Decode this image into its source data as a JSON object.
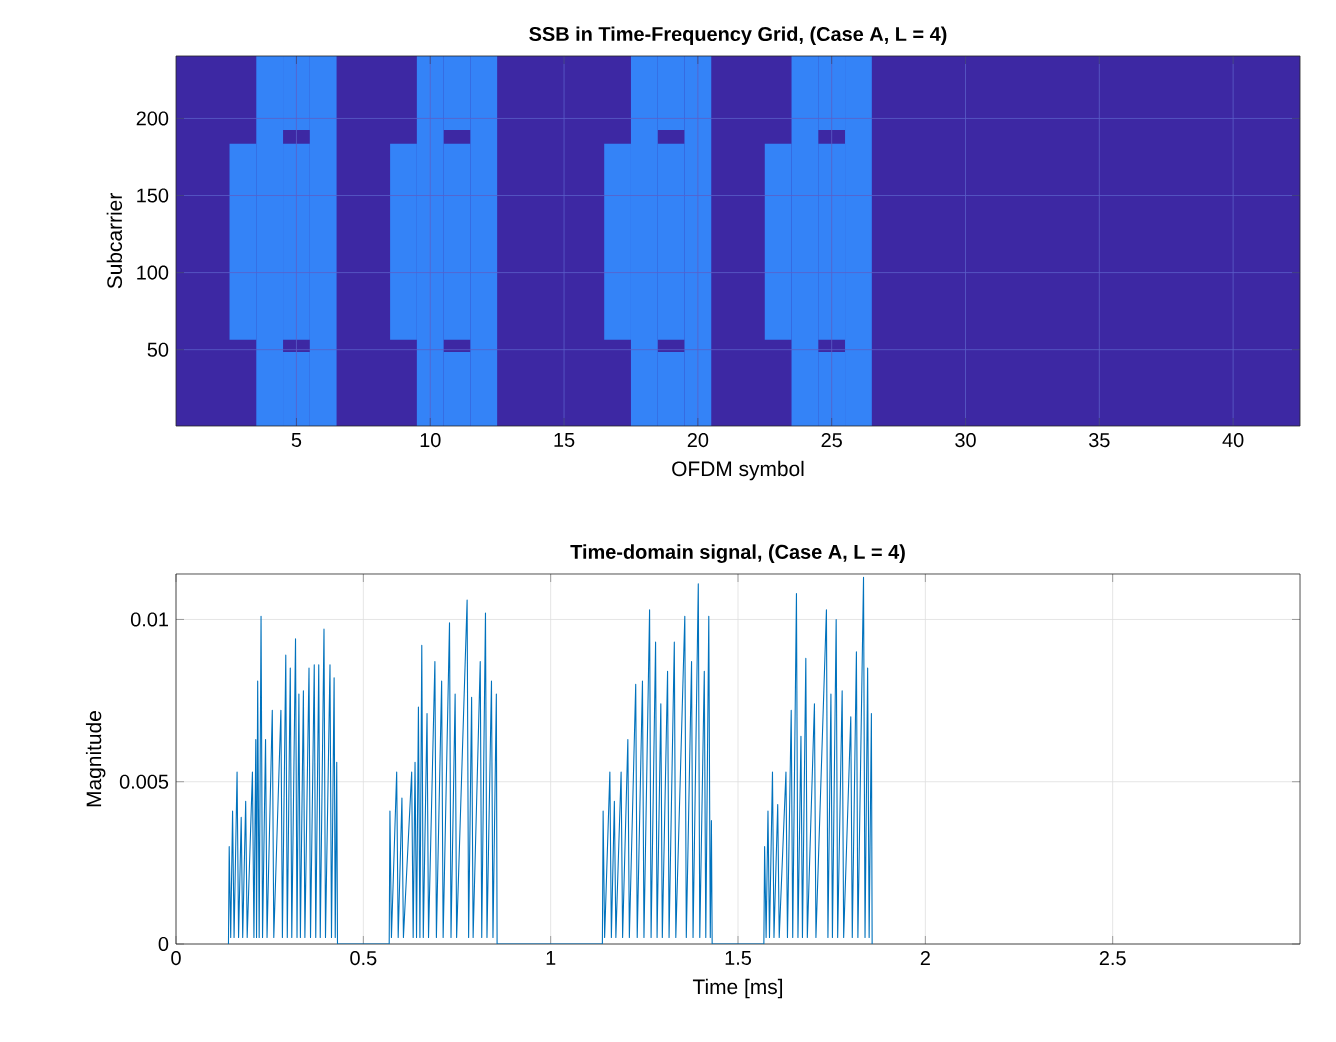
{
  "chart_data": [
    {
      "type": "bar",
      "title": "SSB in Time-Frequency Grid, (Case A, L = 4)",
      "xlabel": "OFDM symbol",
      "ylabel": "Subcarrier",
      "xlim": [
        0.5,
        42.5
      ],
      "xticks": [
        5,
        10,
        15,
        20,
        25,
        30,
        35,
        40
      ],
      "ylim": [
        0.5,
        240.5
      ],
      "yticks": [
        50,
        100,
        150,
        200
      ],
      "grid": true,
      "series": [
        {
          "color": "#3483f7",
          "x": [
            3,
            4,
            6,
            9,
            10,
            12,
            17,
            18,
            20,
            23,
            24,
            26
          ],
          "base": [
            56.5,
            0.5,
            0.5,
            56.5,
            0.5,
            0.5,
            56.5,
            0.5,
            0.5,
            56.5,
            0.5,
            0.5
          ],
          "values": [
            127,
            240,
            240,
            127,
            240,
            240,
            127,
            240,
            240,
            127,
            240,
            240
          ]
        },
        {
          "color": "#3483f7",
          "x": [
            5,
            11,
            19,
            25
          ],
          "base": [
            0.5,
            0.5,
            0.5,
            0.5
          ],
          "values": [
            48,
            48,
            48,
            48
          ]
        },
        {
          "color": "#3483f7",
          "x": [
            5,
            11,
            19,
            25
          ],
          "base": [
            56.5,
            56.5,
            56.5,
            56.5
          ],
          "values": [
            127,
            127,
            127,
            127
          ]
        },
        {
          "color": "#3483f7",
          "x": [
            5,
            11,
            19,
            25
          ],
          "base": [
            192.5,
            192.5,
            192.5,
            192.5
          ],
          "values": [
            48,
            48,
            48,
            48
          ]
        }
      ]
    },
    {
      "type": "line",
      "title": "Time-domain signal, (Case A, L = 4)",
      "xlabel": "Time [ms]",
      "ylabel": "Magnitude",
      "xlim": [
        0,
        3
      ],
      "xticks": [
        0,
        0.5,
        1,
        1.5,
        2,
        2.5
      ],
      "ylim": [
        0,
        0.0114
      ],
      "yticks": [
        0,
        0.005,
        0.01
      ],
      "grid": true,
      "series": [
        {
          "color": "#0072bd",
          "x": [
            0.14,
            0.142,
            0.146,
            0.151,
            0.155,
            0.163,
            0.167,
            0.174,
            0.178,
            0.186,
            0.19,
            0.204,
            0.208,
            0.213,
            0.215,
            0.218,
            0.222,
            0.227,
            0.231,
            0.239,
            0.243,
            0.257,
            0.261,
            0.28,
            0.284,
            0.293,
            0.297,
            0.305,
            0.309,
            0.319,
            0.323,
            0.328,
            0.332,
            0.34,
            0.344,
            0.355,
            0.359,
            0.369,
            0.373,
            0.381,
            0.385,
            0.395,
            0.399,
            0.411,
            0.415,
            0.422,
            0.425,
            0.429,
            0.431,
            0.569,
            0.571,
            0.575,
            0.589,
            0.593,
            0.603,
            0.607,
            0.629,
            0.633,
            0.638,
            0.642,
            0.647,
            0.651,
            0.656,
            0.66,
            0.67,
            0.674,
            0.691,
            0.695,
            0.709,
            0.713,
            0.73,
            0.734,
            0.745,
            0.749,
            0.777,
            0.781,
            0.789,
            0.793,
            0.812,
            0.816,
            0.826,
            0.83,
            0.842,
            0.846,
            0.855,
            0.857,
            1.138,
            1.14,
            1.144,
            1.158,
            1.162,
            1.17,
            1.174,
            1.188,
            1.192,
            1.206,
            1.21,
            1.227,
            1.231,
            1.245,
            1.249,
            1.264,
            1.268,
            1.28,
            1.284,
            1.294,
            1.298,
            1.312,
            1.316,
            1.33,
            1.334,
            1.358,
            1.362,
            1.376,
            1.38,
            1.394,
            1.398,
            1.41,
            1.414,
            1.422,
            1.426,
            1.429,
            1.431,
            1.569,
            1.571,
            1.575,
            1.58,
            1.584,
            1.592,
            1.596,
            1.606,
            1.61,
            1.628,
            1.632,
            1.642,
            1.646,
            1.656,
            1.66,
            1.668,
            1.672,
            1.681,
            1.685,
            1.704,
            1.708,
            1.736,
            1.74,
            1.748,
            1.752,
            1.762,
            1.766,
            1.778,
            1.782,
            1.801,
            1.805,
            1.816,
            1.82,
            1.835,
            1.839,
            1.846,
            1.85,
            1.856,
            1.858
          ],
          "values": [
            0,
            0.003,
            0.0002,
            0.0041,
            0.0002,
            0.0053,
            0.0002,
            0.0039,
            0.0002,
            0.0044,
            0.0002,
            0.0053,
            0.0002,
            0.0063,
            0.0002,
            0.0081,
            0.0002,
            0.0101,
            0.0002,
            0.0063,
            0.0002,
            0.0072,
            0.0002,
            0.0072,
            0.0002,
            0.0089,
            0.0002,
            0.0085,
            0.0002,
            0.0094,
            0.0002,
            0.0077,
            0.0002,
            0.0078,
            0.0002,
            0.0085,
            0.0002,
            0.0086,
            0.0002,
            0.0086,
            0.0002,
            0.0097,
            0.0002,
            0.0086,
            0.0002,
            0.0082,
            0.0002,
            0.0056,
            0,
            0,
            0.0041,
            0.0002,
            0.0053,
            0.0002,
            0.0045,
            0.0002,
            0.0053,
            0.0002,
            0.0056,
            0.0002,
            0.0073,
            0.0002,
            0.0092,
            0.0002,
            0.0071,
            0.0002,
            0.0087,
            0.0002,
            0.0081,
            0.0002,
            0.0099,
            0.0002,
            0.0077,
            0.0002,
            0.0106,
            0.0002,
            0.0076,
            0.0002,
            0.0087,
            0.0002,
            0.0102,
            0.0002,
            0.0081,
            0.0002,
            0.0077,
            0,
            0,
            0.0041,
            0.0002,
            0.0053,
            0.0002,
            0.0044,
            0.0002,
            0.0053,
            0.0002,
            0.0063,
            0.0002,
            0.008,
            0.0002,
            0.0081,
            0.0002,
            0.0103,
            0.0002,
            0.0093,
            0.0002,
            0.0074,
            0.0002,
            0.0084,
            0.0002,
            0.0093,
            0.0002,
            0.0101,
            0.0002,
            0.0087,
            0.0002,
            0.0111,
            0.0002,
            0.0084,
            0.0002,
            0.0101,
            0.0002,
            0.0038,
            0,
            0,
            0.003,
            0.0002,
            0.0041,
            0.0002,
            0.0053,
            0.0002,
            0.0043,
            0.0002,
            0.0053,
            0.0002,
            0.0072,
            0.0002,
            0.0108,
            0.0002,
            0.0064,
            0.0002,
            0.0088,
            0.0002,
            0.0074,
            0.0002,
            0.0103,
            0.0002,
            0.0077,
            0.0002,
            0.01,
            0.0002,
            0.0078,
            0.0002,
            0.007,
            0.0002,
            0.009,
            0.0002,
            0.0113,
            0.0002,
            0.0085,
            0.0002,
            0.0071,
            0
          ]
        }
      ]
    }
  ]
}
